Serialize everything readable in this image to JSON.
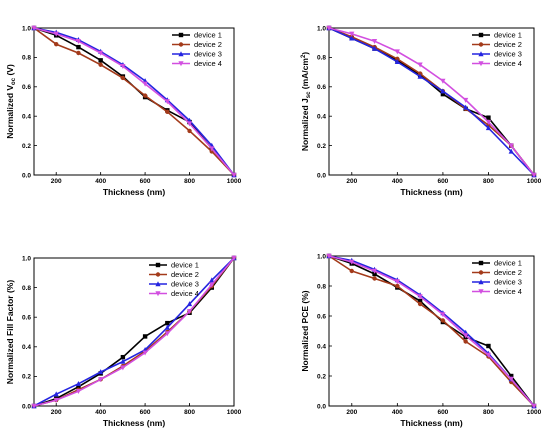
{
  "figure": {
    "colors": {
      "device 1": "#000000",
      "device 2": "#a33a1a",
      "device 3": "#2424e0",
      "device 4": "#d24fe0"
    }
  },
  "chart_data": [
    {
      "type": "line",
      "xlabel": "Thickness (nm)",
      "ylabel": "Normalized V",
      "ylabel_sub": "oc",
      "ylabel_suffix": " (V)",
      "xlim": [
        100,
        1000
      ],
      "ylim": [
        0,
        1.0
      ],
      "xticks": [
        200,
        400,
        600,
        800,
        1000
      ],
      "yticks": [
        0.0,
        0.2,
        0.4,
        0.6,
        0.8,
        1.0
      ],
      "yticks_text": [
        "0.0",
        "0.2",
        "0.4",
        "0.6",
        "0.8",
        "1.0"
      ],
      "legend": "top-right",
      "grid": false,
      "x": [
        100,
        200,
        300,
        400,
        500,
        600,
        700,
        800,
        900,
        1000
      ],
      "series": [
        {
          "name": "device 1",
          "values": [
            1.0,
            0.95,
            0.87,
            0.78,
            0.67,
            0.53,
            0.44,
            0.36,
            0.18,
            0.0
          ]
        },
        {
          "name": "device 2",
          "values": [
            1.0,
            0.89,
            0.83,
            0.75,
            0.66,
            0.54,
            0.43,
            0.3,
            0.16,
            0.0
          ]
        },
        {
          "name": "device 3",
          "values": [
            1.0,
            0.97,
            0.92,
            0.84,
            0.75,
            0.64,
            0.51,
            0.37,
            0.2,
            0.0
          ]
        },
        {
          "name": "device 4",
          "values": [
            1.0,
            0.96,
            0.91,
            0.83,
            0.74,
            0.62,
            0.5,
            0.35,
            0.18,
            0.0
          ]
        }
      ]
    },
    {
      "type": "line",
      "xlabel": "Thickness (nm)",
      "ylabel": "Normalized J",
      "ylabel_sub": "sc",
      "ylabel_suffix": " (mA/cm",
      "ylabel_sup": "2",
      "ylabel_end": ")",
      "xlim": [
        100,
        1000
      ],
      "ylim": [
        0,
        1.0
      ],
      "xticks": [
        200,
        400,
        600,
        800,
        1000
      ],
      "yticks": [
        0.0,
        0.2,
        0.4,
        0.6,
        0.8,
        1.0
      ],
      "yticks_text": [
        "0.0",
        "0.2",
        "0.4",
        "0.6",
        "0.8",
        "1.0"
      ],
      "legend": "top-right",
      "grid": false,
      "x": [
        100,
        200,
        300,
        400,
        500,
        600,
        700,
        800,
        900,
        1000
      ],
      "series": [
        {
          "name": "device 1",
          "values": [
            1.0,
            0.93,
            0.86,
            0.78,
            0.68,
            0.55,
            0.45,
            0.39,
            0.2,
            0.0
          ]
        },
        {
          "name": "device 2",
          "values": [
            1.0,
            0.94,
            0.87,
            0.79,
            0.69,
            0.57,
            0.45,
            0.34,
            0.2,
            0.0
          ]
        },
        {
          "name": "device 3",
          "values": [
            1.0,
            0.93,
            0.86,
            0.77,
            0.67,
            0.57,
            0.46,
            0.32,
            0.16,
            0.0
          ]
        },
        {
          "name": "device 4",
          "values": [
            1.0,
            0.96,
            0.91,
            0.84,
            0.75,
            0.64,
            0.51,
            0.36,
            0.2,
            0.0
          ]
        }
      ]
    },
    {
      "type": "line",
      "xlabel": "Thickness (nm)",
      "ylabel": "Normalized Fill Factor (%)",
      "xlim": [
        100,
        1000
      ],
      "ylim": [
        0,
        1.0
      ],
      "xticks": [
        200,
        400,
        600,
        800,
        1000
      ],
      "yticks": [
        0.0,
        0.2,
        0.4,
        0.6,
        0.8,
        1.0
      ],
      "yticks_text": [
        "0.0",
        "0.2",
        "0.4",
        "0.6",
        "0.8",
        "1.0"
      ],
      "legend": "top-left",
      "grid": false,
      "x": [
        100,
        200,
        300,
        400,
        500,
        600,
        700,
        800,
        900,
        1000
      ],
      "series": [
        {
          "name": "device 1",
          "values": [
            0.0,
            0.05,
            0.13,
            0.22,
            0.33,
            0.47,
            0.56,
            0.63,
            0.8,
            1.0
          ]
        },
        {
          "name": "device 2",
          "values": [
            0.0,
            0.04,
            0.11,
            0.18,
            0.27,
            0.37,
            0.5,
            0.64,
            0.81,
            1.0
          ]
        },
        {
          "name": "device 3",
          "values": [
            0.0,
            0.08,
            0.15,
            0.23,
            0.3,
            0.38,
            0.53,
            0.69,
            0.85,
            1.0
          ]
        },
        {
          "name": "device 4",
          "values": [
            0.0,
            0.04,
            0.1,
            0.18,
            0.26,
            0.36,
            0.49,
            0.64,
            0.82,
            1.0
          ]
        }
      ]
    },
    {
      "type": "line",
      "xlabel": "Thickness (nm)",
      "ylabel": "Normalized PCE (%)",
      "xlim": [
        100,
        1000
      ],
      "ylim": [
        0,
        1.0
      ],
      "xticks": [
        200,
        400,
        600,
        800,
        1000
      ],
      "yticks": [
        0.0,
        0.2,
        0.4,
        0.6,
        0.8,
        1.0
      ],
      "yticks_text": [
        "0.0",
        "0.2",
        "0.4",
        "0.6",
        "0.8",
        "1.0"
      ],
      "legend": "top-right",
      "grid": false,
      "x": [
        100,
        200,
        300,
        400,
        500,
        600,
        700,
        800,
        900,
        1000
      ],
      "series": [
        {
          "name": "device 1",
          "values": [
            1.0,
            0.95,
            0.88,
            0.79,
            0.7,
            0.56,
            0.46,
            0.4,
            0.2,
            0.0
          ]
        },
        {
          "name": "device 2",
          "values": [
            1.0,
            0.9,
            0.85,
            0.8,
            0.68,
            0.57,
            0.43,
            0.33,
            0.16,
            0.0
          ]
        },
        {
          "name": "device 3",
          "values": [
            1.0,
            0.97,
            0.91,
            0.84,
            0.74,
            0.62,
            0.49,
            0.35,
            0.18,
            0.0
          ]
        },
        {
          "name": "device 4",
          "values": [
            1.0,
            0.96,
            0.9,
            0.83,
            0.73,
            0.61,
            0.47,
            0.34,
            0.18,
            0.0
          ]
        }
      ]
    }
  ]
}
